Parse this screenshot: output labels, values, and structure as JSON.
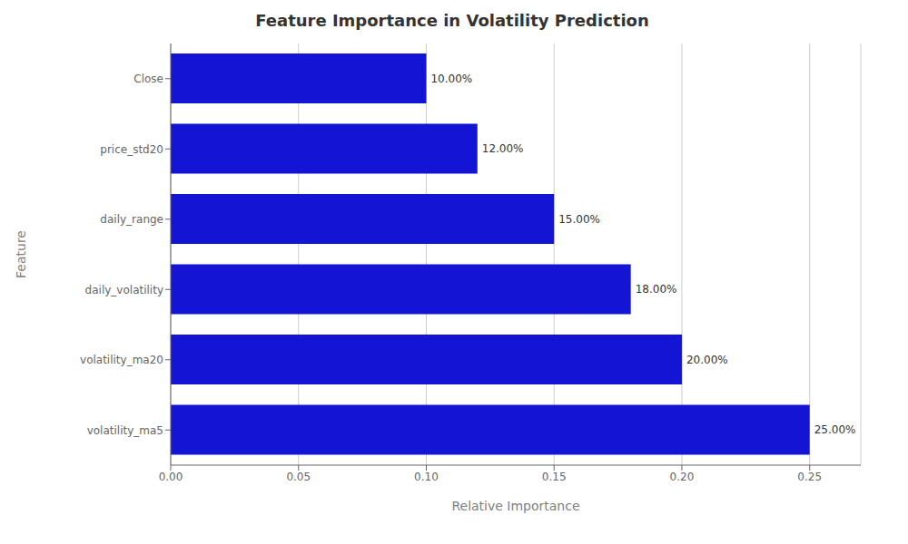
{
  "chart_data": {
    "type": "bar",
    "orientation": "horizontal",
    "title": "Feature Importance in Volatility Prediction",
    "x_label": "Relative Importance",
    "y_label": "Feature",
    "categories": [
      "Close",
      "price_std20",
      "daily_range",
      "daily_volatility",
      "volatility_ma20",
      "volatility_ma5"
    ],
    "values": [
      0.1,
      0.12,
      0.15,
      0.18,
      0.2,
      0.25
    ],
    "value_labels": [
      "10.00%",
      "12.00%",
      "15.00%",
      "18.00%",
      "20.00%",
      "25.00%"
    ],
    "data_labels": true,
    "color": "#1414d4",
    "xlim": [
      0.0,
      0.27
    ],
    "xticks": [
      {
        "value": 0.0,
        "label": "0.00"
      },
      {
        "value": 0.05,
        "label": "0.05"
      },
      {
        "value": 0.1,
        "label": "0.10"
      },
      {
        "value": 0.15,
        "label": "0.15"
      },
      {
        "value": 0.2,
        "label": "0.20"
      },
      {
        "value": 0.25,
        "label": "0.25"
      }
    ],
    "grid": true
  }
}
